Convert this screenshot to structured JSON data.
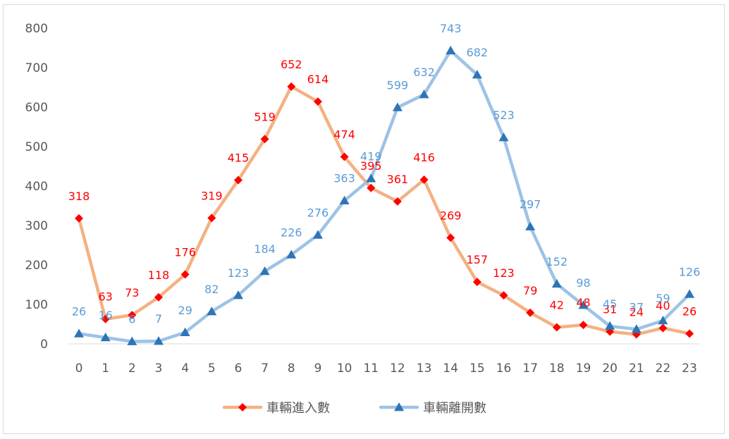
{
  "chart_data": {
    "type": "line",
    "title": "",
    "xlabel": "",
    "ylabel": "",
    "ylim": [
      0,
      800
    ],
    "yticks": [
      0,
      100,
      200,
      300,
      400,
      500,
      600,
      700,
      800
    ],
    "grid": false,
    "legend_position": "bottom",
    "categories": [
      "0",
      "1",
      "2",
      "3",
      "4",
      "5",
      "6",
      "7",
      "8",
      "9",
      "10",
      "11",
      "12",
      "13",
      "14",
      "15",
      "16",
      "17",
      "18",
      "19",
      "20",
      "21",
      "22",
      "23"
    ],
    "series": [
      {
        "name": "車輛進入數",
        "line_color": "#f4b183",
        "marker_color": "#ff0000",
        "label_color": "#ff0000",
        "marker": "diamond-icon",
        "values": [
          318,
          63,
          73,
          118,
          176,
          319,
          415,
          519,
          652,
          614,
          474,
          395,
          361,
          416,
          269,
          157,
          123,
          79,
          42,
          48,
          31,
          24,
          40,
          26
        ]
      },
      {
        "name": "車輛離開數",
        "line_color": "#9dc3e6",
        "marker_color": "#2e75b6",
        "label_color": "#5b9bd5",
        "marker": "triangle-icon",
        "values": [
          26,
          16,
          6,
          7,
          29,
          82,
          123,
          184,
          226,
          276,
          363,
          419,
          599,
          632,
          743,
          682,
          523,
          297,
          152,
          98,
          45,
          37,
          59,
          126
        ]
      }
    ]
  }
}
